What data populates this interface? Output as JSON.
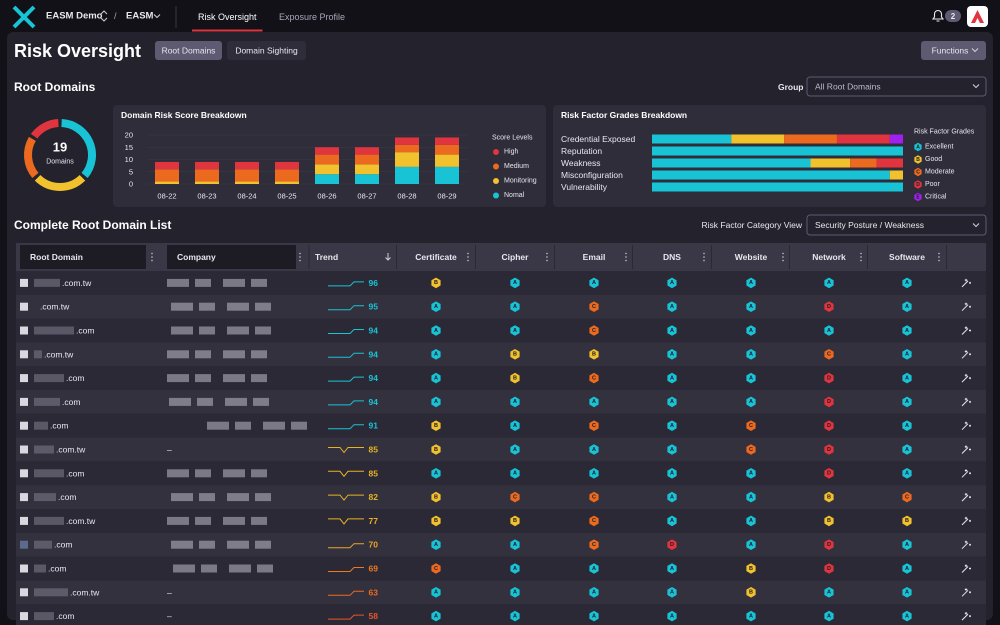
{
  "nav": {
    "org": "EASM Demo",
    "product": "EASM",
    "separator": "/",
    "tabs": [
      "Risk Oversight",
      "Exposure Profile"
    ],
    "active_tab": 0,
    "notifications": 2
  },
  "header": {
    "title": "Risk Oversight",
    "tabs": [
      "Root Domains",
      "Domain Sighting"
    ],
    "active_tab": 0,
    "functions": "Functions"
  },
  "root_domains": {
    "heading": "Root Domains",
    "group_label": "Group",
    "group_value": "All Root Domains",
    "donut": {
      "total": 19,
      "label": "Domains",
      "values": [
        7,
        5,
        4,
        3
      ],
      "colors": [
        "#19c3d6",
        "#f2c12e",
        "#ec6a1f",
        "#e0353f"
      ]
    },
    "score_chart": {
      "type": "bar",
      "stacked": true,
      "title": "Domain Risk Score Breakdown",
      "legend_title": "Score Levels",
      "categories": [
        "08-22",
        "08-23",
        "08-24",
        "08-25",
        "08-26",
        "08-27",
        "08-28",
        "08-29"
      ],
      "ylim": [
        0,
        20
      ],
      "yticks": [
        0,
        5,
        10,
        15,
        20
      ],
      "grid": true,
      "series": [
        {
          "name": "High",
          "color": "#e0353f",
          "values": [
            3,
            3,
            3,
            3,
            3,
            3,
            3,
            3
          ]
        },
        {
          "name": "Medium",
          "color": "#ec6a1f",
          "values": [
            5,
            5,
            5,
            5,
            4,
            4,
            3,
            4
          ]
        },
        {
          "name": "Monitoring",
          "color": "#f2c12e",
          "values": [
            1,
            1,
            1,
            1,
            4,
            4,
            6,
            5
          ]
        },
        {
          "name": "Nomal",
          "color": "#19c3d6",
          "values": [
            0,
            0,
            0,
            0,
            4,
            4,
            7,
            7
          ]
        }
      ]
    },
    "grade_chart": {
      "type": "bar",
      "orientation": "horizontal",
      "stacked": true,
      "title": "Risk Factor Grades Breakdown",
      "legend_title": "Risk Factor Grades",
      "categories": [
        "Credential Exposed",
        "Reputation",
        "Weakness",
        "Misconfiguration",
        "Vulnerability"
      ],
      "series": [
        {
          "name": "Excellent",
          "grade": "A",
          "color": "#19c3d6",
          "values": [
            6,
            19,
            12,
            18,
            19
          ]
        },
        {
          "name": "Good",
          "grade": "B",
          "color": "#f2c12e",
          "values": [
            4,
            0,
            3,
            1,
            0
          ]
        },
        {
          "name": "Moderate",
          "grade": "C",
          "color": "#ec6a1f",
          "values": [
            4,
            0,
            2,
            0,
            0
          ]
        },
        {
          "name": "Poor",
          "grade": "D",
          "color": "#e0353f",
          "values": [
            4,
            0,
            2,
            0,
            0
          ]
        },
        {
          "name": "Critical",
          "grade": "E",
          "color": "#a020f0",
          "values": [
            1,
            0,
            0,
            0,
            0
          ]
        }
      ]
    }
  },
  "domain_list": {
    "heading": "Complete Root Domain List",
    "view_label": "Risk Factor Category View",
    "view_value": "Security Posture / Weakness",
    "columns": [
      "Root Domain",
      "Company",
      "Trend",
      "Certificate",
      "Cipher",
      "Email",
      "DNS",
      "Website",
      "Network",
      "Software"
    ],
    "grade_colors": {
      "A": "#19c3d6",
      "B": "#f2c12e",
      "C": "#ec6a1f",
      "D": "#e0353f"
    },
    "rows": [
      {
        "domain": ".com.tw",
        "score": 96,
        "trend_color": "#19c3d6",
        "grades": [
          "B",
          "A",
          "A",
          "A",
          "A",
          "A",
          "A"
        ]
      },
      {
        "domain": ".com.tw",
        "score": 95,
        "trend_color": "#19c3d6",
        "grades": [
          "A",
          "A",
          "C",
          "A",
          "A",
          "D",
          "A"
        ]
      },
      {
        "domain": ".com",
        "score": 94,
        "trend_color": "#19c3d6",
        "grades": [
          "A",
          "A",
          "C",
          "A",
          "A",
          "A",
          "A"
        ]
      },
      {
        "domain": ".com.tw",
        "score": 94,
        "trend_color": "#19c3d6",
        "grades": [
          "A",
          "B",
          "B",
          "A",
          "A",
          "C",
          "A"
        ]
      },
      {
        "domain": ".com",
        "score": 94,
        "trend_color": "#19c3d6",
        "grades": [
          "A",
          "B",
          "C",
          "A",
          "A",
          "D",
          "A"
        ]
      },
      {
        "domain": ".com",
        "score": 94,
        "trend_color": "#19c3d6",
        "grades": [
          "A",
          "A",
          "A",
          "A",
          "A",
          "D",
          "A"
        ]
      },
      {
        "domain": ".com",
        "score": 91,
        "trend_color": "#19c3d6",
        "grades": [
          "B",
          "A",
          "C",
          "A",
          "C",
          "D",
          "A"
        ]
      },
      {
        "domain": ".com.tw",
        "company": "–",
        "score": 85,
        "trend_color": "#e6b325",
        "grades": [
          "B",
          "A",
          "A",
          "A",
          "C",
          "D",
          "A"
        ]
      },
      {
        "domain": ".com",
        "score": 85,
        "trend_color": "#e6b325",
        "grades": [
          "A",
          "A",
          "A",
          "A",
          "A",
          "D",
          "A"
        ]
      },
      {
        "domain": ".com",
        "score": 82,
        "trend_color": "#e6b325",
        "grades": [
          "B",
          "C",
          "C",
          "A",
          "A",
          "B",
          "C"
        ]
      },
      {
        "domain": ".com.tw",
        "score": 77,
        "trend_color": "#e6b325",
        "grades": [
          "B",
          "B",
          "C",
          "A",
          "A",
          "B",
          "B"
        ]
      },
      {
        "domain": ".com",
        "score": 70,
        "trend_color": "#eba52a",
        "grades": [
          "A",
          "A",
          "C",
          "D",
          "A",
          "D",
          "A"
        ]
      },
      {
        "domain": ".com",
        "score": 69,
        "trend_color": "#ec7a24",
        "grades": [
          "C",
          "A",
          "A",
          "A",
          "B",
          "D",
          "A"
        ]
      },
      {
        "domain": ".com.tw",
        "company": "–",
        "score": 63,
        "trend_color": "#ec6a1f",
        "grades": [
          "A",
          "A",
          "A",
          "A",
          "B",
          "A",
          "A"
        ]
      },
      {
        "domain": ".com",
        "company": "–",
        "score": 58,
        "trend_color": "#e8552a",
        "grades": [
          "A",
          "A",
          "A",
          "A",
          "A",
          "A",
          "A"
        ]
      }
    ]
  }
}
